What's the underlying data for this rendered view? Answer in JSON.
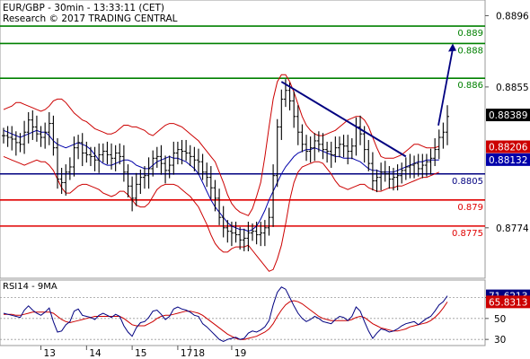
{
  "header": {
    "symbol_line": "EUR/GBP - 30min - 13:33:11 (CET)",
    "research_line": "Research © 2017 TRADING CENTRAL"
  },
  "rsi_label": "RSI14 - 9MA",
  "colors": {
    "price": "#000000",
    "bollinger": "#cc0000",
    "moving_average": "#0000aa",
    "resistance": "#008000",
    "pivot": "#000080",
    "support": "#e00000",
    "rsi": "#000080",
    "rsi_ma": "#cc0000",
    "arrow": "#000080"
  },
  "chart_data": [
    {
      "type": "line",
      "name": "price",
      "ylim": [
        0.8745,
        0.8905
      ],
      "y_ticks": [
        "0.8896",
        "0.8855",
        "0.8774"
      ],
      "x_ticks": [
        "13",
        "14",
        "15",
        "17",
        "18",
        "19"
      ],
      "levels": [
        {
          "kind": "resistance",
          "value": 0.889,
          "label": "0.889"
        },
        {
          "kind": "resistance",
          "value": 0.888,
          "label": "0.888"
        },
        {
          "kind": "resistance",
          "value": 0.886,
          "label": "0.886"
        },
        {
          "kind": "pivot",
          "value": 0.8805,
          "label": "0.8805"
        },
        {
          "kind": "support",
          "value": 0.879,
          "label": "0.879"
        },
        {
          "kind": "support",
          "value": 0.8775,
          "label": "0.8775"
        }
      ],
      "price_tags": [
        {
          "value": 0.88389,
          "label": "0.88389",
          "style": "price"
        },
        {
          "value": 0.88206,
          "label": "0.88206",
          "style": "bollinger"
        },
        {
          "value": 0.88132,
          "label": "0.88132",
          "style": "moving_average"
        }
      ],
      "series": [
        {
          "values": [
            0.8827,
            0.8826,
            0.8825,
            0.8823,
            0.8822,
            0.8829,
            0.8836,
            0.8832,
            0.8828,
            0.8826,
            0.8829,
            0.8834,
            0.882,
            0.8802,
            0.88,
            0.8806,
            0.8809,
            0.882,
            0.8823,
            0.8817,
            0.8816,
            0.8815,
            0.8813,
            0.8816,
            0.8818,
            0.8816,
            0.8814,
            0.8817,
            0.8815,
            0.8806,
            0.8798,
            0.8791,
            0.8799,
            0.8803,
            0.8804,
            0.8808,
            0.8814,
            0.8815,
            0.8811,
            0.8807,
            0.881,
            0.8817,
            0.8819,
            0.8818,
            0.8817,
            0.8815,
            0.8813,
            0.8812,
            0.8806,
            0.8803,
            0.8797,
            0.8791,
            0.878,
            0.8774,
            0.8772,
            0.8771,
            0.877,
            0.8767,
            0.8768,
            0.8771,
            0.8772,
            0.877,
            0.8771,
            0.8774,
            0.878,
            0.8804,
            0.8832,
            0.8848,
            0.8853,
            0.8847,
            0.8838,
            0.8829,
            0.8822,
            0.8818,
            0.882,
            0.8824,
            0.8822,
            0.8819,
            0.8818,
            0.8816,
            0.882,
            0.8822,
            0.8821,
            0.8818,
            0.8821,
            0.8832,
            0.8828,
            0.8819,
            0.8811,
            0.8801,
            0.8803,
            0.8806,
            0.8805,
            0.8802,
            0.8803,
            0.8804,
            0.8807,
            0.8809,
            0.881,
            0.8811,
            0.8808,
            0.881,
            0.8812,
            0.8814,
            0.8819,
            0.8826,
            0.8829,
            0.8838
          ]
        },
        {
          "name": "",
          "values": [
            0.883,
            0.8829,
            0.8828,
            0.8827,
            0.8826,
            0.8827,
            0.8828,
            0.8829,
            0.883,
            0.8829,
            0.8829,
            0.8827,
            0.8824,
            0.8822,
            0.8821,
            0.882,
            0.8821,
            0.8822,
            0.8823,
            0.8822,
            0.8821,
            0.8819,
            0.8816,
            0.8813,
            0.8811,
            0.881,
            0.881,
            0.8811,
            0.8812,
            0.8813,
            0.8813,
            0.8812,
            0.881,
            0.8809,
            0.8808,
            0.8808,
            0.881,
            0.8812,
            0.8813,
            0.8814,
            0.8815,
            0.8814,
            0.8814,
            0.8813,
            0.8812,
            0.881,
            0.8808,
            0.8805,
            0.88,
            0.8795,
            0.879,
            0.8786,
            0.8783,
            0.878,
            0.8777,
            0.8775,
            0.8774,
            0.8773,
            0.8773,
            0.8772,
            0.8773,
            0.8775,
            0.8779,
            0.8784,
            0.879,
            0.8795,
            0.88,
            0.8805,
            0.8809,
            0.8812,
            0.8815,
            0.8817,
            0.8818,
            0.8819,
            0.8819,
            0.882,
            0.8819,
            0.8818,
            0.8817,
            0.8816,
            0.8815,
            0.8815,
            0.8814,
            0.8814,
            0.8814,
            0.8813,
            0.8812,
            0.881,
            0.8808,
            0.8807,
            0.8807,
            0.8806,
            0.8806,
            0.8806,
            0.8806,
            0.8807,
            0.8808,
            0.8809,
            0.881,
            0.8811,
            0.8812,
            0.8812,
            0.8813,
            0.8813,
            0.8813,
            0.8813
          ]
        },
        {
          "name": "",
          "values": [
            0.8842,
            0.8843,
            0.8844,
            0.8846,
            0.8846,
            0.8845,
            0.8844,
            0.8843,
            0.8842,
            0.8841,
            0.8842,
            0.8844,
            0.8847,
            0.8848,
            0.8848,
            0.8846,
            0.8843,
            0.884,
            0.8838,
            0.8836,
            0.8835,
            0.8833,
            0.8831,
            0.883,
            0.8829,
            0.8828,
            0.8828,
            0.8829,
            0.8831,
            0.8833,
            0.8833,
            0.8832,
            0.8832,
            0.8831,
            0.883,
            0.8828,
            0.8827,
            0.8829,
            0.8831,
            0.8833,
            0.8834,
            0.8834,
            0.8833,
            0.8832,
            0.883,
            0.8828,
            0.8826,
            0.8824,
            0.8821,
            0.8818,
            0.8815,
            0.8812,
            0.8806,
            0.88,
            0.8793,
            0.8788,
            0.8785,
            0.8783,
            0.8782,
            0.8781,
            0.8785,
            0.8792,
            0.88,
            0.8815,
            0.8832,
            0.8848,
            0.8858,
            0.8862,
            0.8862,
            0.8858,
            0.8852,
            0.8845,
            0.8838,
            0.8833,
            0.883,
            0.8828,
            0.8827,
            0.8827,
            0.8828,
            0.8829,
            0.883,
            0.8832,
            0.8834,
            0.8836,
            0.8837,
            0.8838,
            0.8838,
            0.8836,
            0.8832,
            0.8826,
            0.882,
            0.8815,
            0.8814,
            0.8814,
            0.8814,
            0.8815,
            0.8816,
            0.8818,
            0.882,
            0.8822,
            0.8822,
            0.8821,
            0.882,
            0.882,
            0.882,
            0.8821
          ]
        },
        {
          "name": "",
          "values": [
            0.8815,
            0.8814,
            0.8813,
            0.8812,
            0.8811,
            0.881,
            0.8811,
            0.8812,
            0.8813,
            0.8812,
            0.8812,
            0.881,
            0.8807,
            0.8802,
            0.8797,
            0.8794,
            0.8794,
            0.8796,
            0.8798,
            0.8799,
            0.8799,
            0.8798,
            0.8797,
            0.8796,
            0.8794,
            0.8793,
            0.8792,
            0.8793,
            0.8795,
            0.8795,
            0.8793,
            0.879,
            0.8787,
            0.8786,
            0.8786,
            0.8788,
            0.8792,
            0.8796,
            0.8798,
            0.8799,
            0.8799,
            0.8799,
            0.8798,
            0.8796,
            0.8794,
            0.8792,
            0.8789,
            0.8786,
            0.8781,
            0.8776,
            0.877,
            0.8765,
            0.8762,
            0.876,
            0.876,
            0.8762,
            0.8763,
            0.8763,
            0.8763,
            0.8764,
            0.8761,
            0.8758,
            0.8755,
            0.8752,
            0.8749,
            0.875,
            0.8756,
            0.8764,
            0.8776,
            0.879,
            0.88,
            0.8806,
            0.8809,
            0.881,
            0.8811,
            0.8812,
            0.8812,
            0.8811,
            0.8808,
            0.8805,
            0.8801,
            0.8798,
            0.8797,
            0.8796,
            0.8797,
            0.8798,
            0.8799,
            0.8799,
            0.8797,
            0.8796,
            0.8795,
            0.8795,
            0.8796,
            0.8797,
            0.8797,
            0.8798,
            0.8798,
            0.8799,
            0.88,
            0.8801,
            0.8802,
            0.8803,
            0.8803,
            0.8804,
            0.8805,
            0.8806
          ]
        }
      ],
      "trendline": {
        "from": [
          0.8858,
          0.8815
        ]
      },
      "forecast_arrow": {
        "to": 0.888
      }
    },
    {
      "type": "line",
      "name": "rsi",
      "ylim": [
        25,
        85
      ],
      "y_ticks": [
        70,
        50,
        30
      ],
      "price_tags": [
        {
          "value": 71.6213,
          "label": "71.6213",
          "style": "rsi"
        },
        {
          "value": 65.8313,
          "label": "65.8313",
          "style": "rsi_ma"
        }
      ],
      "series": [
        {
          "values": [
            55,
            54,
            53,
            52,
            51,
            58,
            62,
            58,
            55,
            53,
            56,
            60,
            47,
            37,
            38,
            44,
            47,
            57,
            59,
            53,
            52,
            51,
            49,
            53,
            55,
            53,
            51,
            54,
            52,
            43,
            37,
            33,
            41,
            46,
            47,
            51,
            57,
            58,
            54,
            49,
            52,
            59,
            61,
            59,
            58,
            56,
            53,
            52,
            45,
            42,
            38,
            34,
            30,
            28,
            30,
            31,
            32,
            30,
            31,
            36,
            38,
            37,
            39,
            42,
            48,
            63,
            75,
            80,
            78,
            70,
            62,
            55,
            50,
            47,
            49,
            52,
            50,
            47,
            46,
            45,
            49,
            52,
            51,
            48,
            52,
            61,
            57,
            47,
            38,
            31,
            36,
            40,
            39,
            37,
            38,
            40,
            43,
            45,
            46,
            47,
            44,
            47,
            50,
            52,
            57,
            63,
            66,
            71.6
          ]
        },
        {
          "values": [
            54,
            54,
            54,
            53,
            53,
            54,
            55,
            56,
            56,
            56,
            56,
            56,
            55,
            52,
            49,
            47,
            46,
            47,
            48,
            49,
            50,
            51,
            52,
            52,
            52,
            52,
            52,
            52,
            52,
            50,
            47,
            44,
            43,
            43,
            43,
            45,
            47,
            50,
            52,
            53,
            53,
            54,
            55,
            56,
            57,
            57,
            56,
            55,
            53,
            50,
            47,
            44,
            41,
            38,
            35,
            33,
            31,
            30,
            30,
            31,
            32,
            33,
            35,
            37,
            40,
            45,
            52,
            58,
            63,
            66,
            67,
            66,
            64,
            61,
            58,
            55,
            52,
            50,
            49,
            48,
            48,
            48,
            48,
            48,
            49,
            51,
            52,
            51,
            48,
            45,
            43,
            41,
            40,
            39,
            38,
            38,
            39,
            40,
            42,
            43,
            44,
            45,
            46,
            48,
            51,
            55,
            60,
            65.8
          ]
        }
      ]
    }
  ]
}
